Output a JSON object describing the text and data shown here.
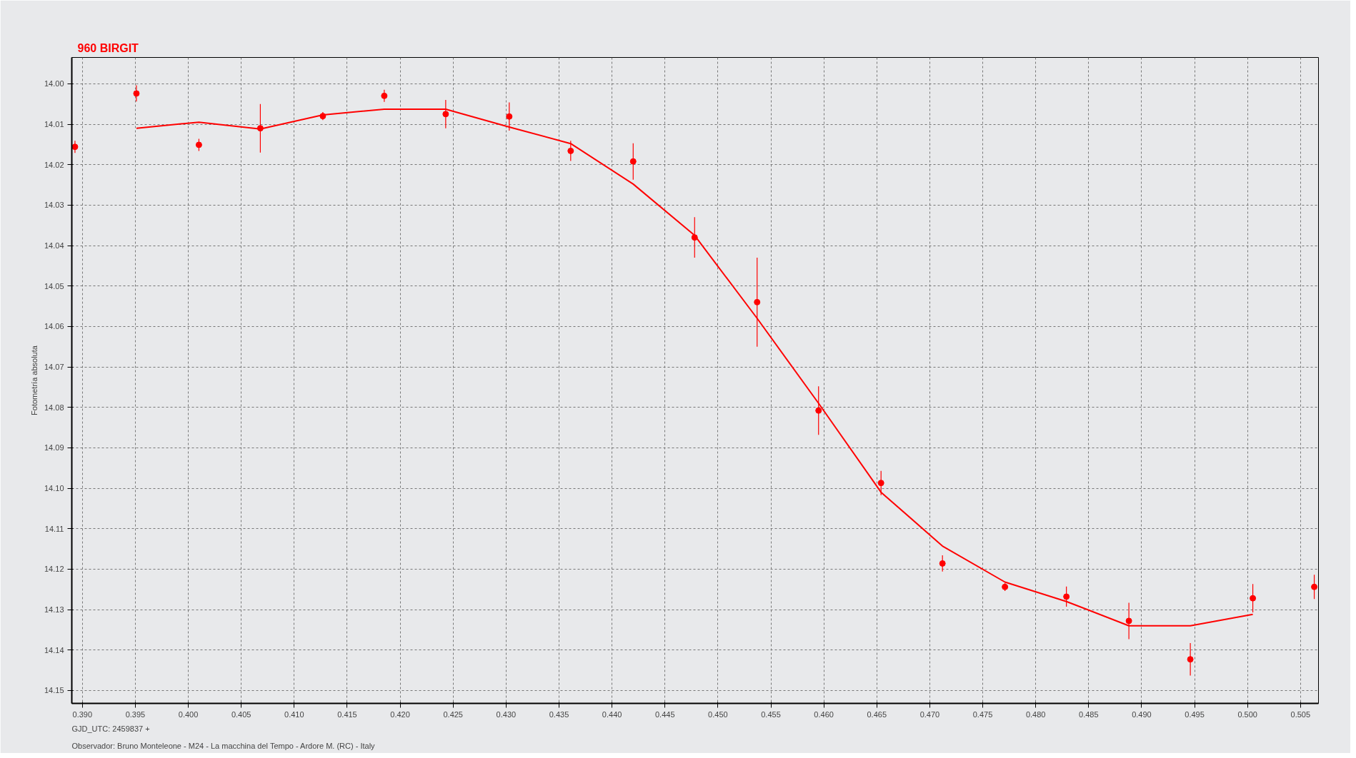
{
  "chart_data": {
    "type": "scatter",
    "title": "960 BIRGIT",
    "ylabel": "Fotometría absoluta",
    "annotations": [
      "GJD_UTC: 2459837 +",
      "Observador: Bruno Monteleone - M24 - La macchina del Tempo - Ardore M. (RC) - Italy"
    ],
    "series": [
      {
        "color": "#ff0000",
        "marker": "circle",
        "x": [
          0.3893,
          0.3951,
          0.401,
          0.4068,
          0.4127,
          0.4185,
          0.4243,
          0.4303,
          0.4361,
          0.442,
          0.4478,
          0.4537,
          0.4595,
          0.4654,
          0.4712,
          0.4771,
          0.4829,
          0.4888,
          0.4946,
          0.5005,
          0.5063
        ],
        "values": [
          14.0156,
          14.0024,
          14.0151,
          14.011,
          14.008,
          14.003,
          14.0075,
          14.0081,
          14.0166,
          14.0192,
          14.038,
          14.054,
          14.0808,
          14.0987,
          14.1186,
          14.1244,
          14.1268,
          14.1328,
          14.1423,
          14.1272,
          14.1244
        ],
        "errors": [
          0.0015,
          0.002,
          0.0015,
          0.006,
          0.001,
          0.0015,
          0.0035,
          0.0035,
          0.0025,
          0.0045,
          0.005,
          0.011,
          0.006,
          0.003,
          0.002,
          0.001,
          0.0025,
          0.0045,
          0.004,
          0.0035,
          0.003
        ]
      },
      {
        "type": "line",
        "color": "#ff0000",
        "line_style": "solid",
        "x": [
          0.3951,
          0.401,
          0.4068,
          0.4127,
          0.4185,
          0.4243,
          0.4303,
          0.4361,
          0.442,
          0.4478,
          0.4537,
          0.4595,
          0.4654,
          0.4712,
          0.4771,
          0.4829,
          0.4888,
          0.4946,
          0.5005
        ],
        "values": [
          14.011,
          14.0095,
          14.0112,
          14.0077,
          14.0063,
          14.0063,
          14.0107,
          14.0148,
          14.0248,
          14.0375,
          14.058,
          14.079,
          14.101,
          14.1143,
          14.1232,
          14.128,
          14.134,
          14.134,
          14.1312
        ]
      }
    ],
    "xlim": [
      0.389,
      0.5067
    ],
    "ylim": [
      14.1532,
      13.9935
    ],
    "xticks": [
      {
        "value": 0.39,
        "label": "0.390"
      },
      0.395,
      {
        "value": 0.4,
        "label": "0.400"
      },
      0.405,
      {
        "value": 0.41,
        "label": "0.410"
      },
      0.415,
      {
        "value": 0.42,
        "label": "0.420"
      },
      0.425,
      {
        "value": 0.43,
        "label": "0.430"
      },
      0.435,
      {
        "value": 0.44,
        "label": "0.440"
      },
      0.445,
      {
        "value": 0.45,
        "label": "0.450"
      },
      0.455,
      {
        "value": 0.46,
        "label": "0.460"
      },
      0.465,
      {
        "value": 0.47,
        "label": "0.470"
      },
      0.475,
      {
        "value": 0.48,
        "label": "0.480"
      },
      0.485,
      {
        "value": 0.49,
        "label": "0.490"
      },
      0.495,
      {
        "value": 0.5,
        "label": "0.500"
      },
      0.505
    ],
    "yticks": [
      {
        "value": 14.0,
        "label": "14.00"
      },
      14.01,
      14.02,
      14.03,
      14.04,
      14.05,
      14.06,
      14.07,
      14.08,
      14.09,
      {
        "value": 14.1,
        "label": "14.10"
      },
      14.11,
      14.12,
      14.13,
      14.14,
      14.15
    ],
    "grid": true
  }
}
